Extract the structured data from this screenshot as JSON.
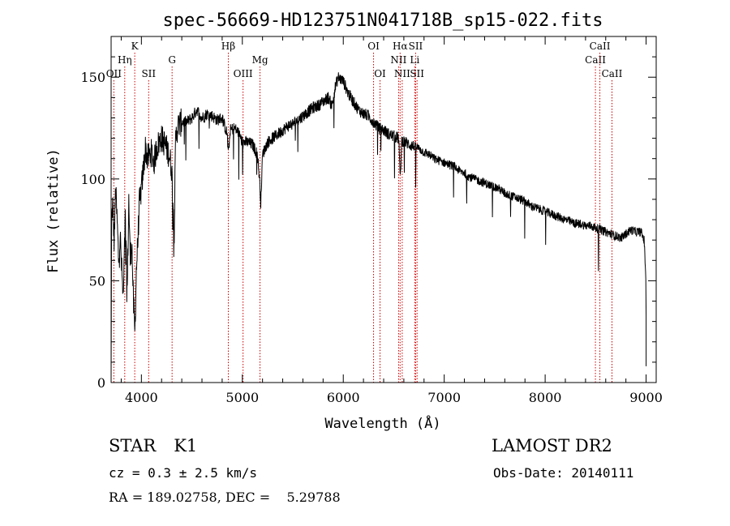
{
  "chart_data": {
    "type": "line",
    "title": "spec-56669-HD123751N041718B_sp15-022.fits",
    "xlabel": "Wavelength (Å)",
    "ylabel": "Flux (relative)",
    "xlim": [
      3700,
      9100
    ],
    "ylim": [
      0,
      170
    ],
    "x_ticks": [
      4000,
      5000,
      6000,
      7000,
      8000,
      9000
    ],
    "y_ticks": [
      0,
      50,
      100,
      150
    ],
    "grid": false,
    "line_color": "#000000",
    "marker_color": "#cc0000",
    "spectrum_anchors": [
      [
        3700,
        73
      ],
      [
        3715,
        88
      ],
      [
        3730,
        70
      ],
      [
        3745,
        95
      ],
      [
        3760,
        78
      ],
      [
        3775,
        60
      ],
      [
        3790,
        72
      ],
      [
        3805,
        55
      ],
      [
        3820,
        40
      ],
      [
        3840,
        80
      ],
      [
        3860,
        45
      ],
      [
        3875,
        90
      ],
      [
        3890,
        60
      ],
      [
        3905,
        70
      ],
      [
        3920,
        40
      ],
      [
        3935,
        25
      ],
      [
        3950,
        55
      ],
      [
        3965,
        70
      ],
      [
        3980,
        88
      ],
      [
        4000,
        95
      ],
      [
        4020,
        105
      ],
      [
        4040,
        115
      ],
      [
        4060,
        110
      ],
      [
        4080,
        112
      ],
      [
        4100,
        113
      ],
      [
        4125,
        108
      ],
      [
        4150,
        115
      ],
      [
        4175,
        118
      ],
      [
        4200,
        120
      ],
      [
        4225,
        118
      ],
      [
        4250,
        115
      ],
      [
        4275,
        112
      ],
      [
        4300,
        105
      ],
      [
        4325,
        75
      ],
      [
        4340,
        120
      ],
      [
        4360,
        126
      ],
      [
        4400,
        128
      ],
      [
        4450,
        128
      ],
      [
        4500,
        130
      ],
      [
        4550,
        134
      ],
      [
        4600,
        130
      ],
      [
        4650,
        132
      ],
      [
        4700,
        131
      ],
      [
        4750,
        129
      ],
      [
        4800,
        130
      ],
      [
        4850,
        122
      ],
      [
        4861,
        112
      ],
      [
        4880,
        124
      ],
      [
        4920,
        125
      ],
      [
        4960,
        123
      ],
      [
        5000,
        118
      ],
      [
        5050,
        118
      ],
      [
        5100,
        117
      ],
      [
        5150,
        112
      ],
      [
        5170,
        100
      ],
      [
        5183,
        88
      ],
      [
        5200,
        112
      ],
      [
        5250,
        118
      ],
      [
        5300,
        120
      ],
      [
        5350,
        122
      ],
      [
        5400,
        124
      ],
      [
        5450,
        126
      ],
      [
        5500,
        127
      ],
      [
        5550,
        129
      ],
      [
        5600,
        131
      ],
      [
        5650,
        133
      ],
      [
        5700,
        135
      ],
      [
        5750,
        136
      ],
      [
        5800,
        138
      ],
      [
        5850,
        140
      ],
      [
        5890,
        136
      ],
      [
        5920,
        145
      ],
      [
        5950,
        150
      ],
      [
        6000,
        148
      ],
      [
        6050,
        142
      ],
      [
        6100,
        138
      ],
      [
        6150,
        134
      ],
      [
        6200,
        132
      ],
      [
        6250,
        131
      ],
      [
        6300,
        128
      ],
      [
        6350,
        125
      ],
      [
        6400,
        124
      ],
      [
        6450,
        122
      ],
      [
        6500,
        121
      ],
      [
        6550,
        120
      ],
      [
        6563,
        100
      ],
      [
        6580,
        119
      ],
      [
        6620,
        118
      ],
      [
        6650,
        117
      ],
      [
        6700,
        116
      ],
      [
        6750,
        115
      ],
      [
        6800,
        113
      ],
      [
        6850,
        112
      ],
      [
        6900,
        110
      ],
      [
        6950,
        109
      ],
      [
        7000,
        108
      ],
      [
        7050,
        107
      ],
      [
        7100,
        106
      ],
      [
        7150,
        104
      ],
      [
        7200,
        103
      ],
      [
        7250,
        101
      ],
      [
        7300,
        100
      ],
      [
        7350,
        99
      ],
      [
        7400,
        98
      ],
      [
        7450,
        97
      ],
      [
        7500,
        96
      ],
      [
        7550,
        95
      ],
      [
        7600,
        93
      ],
      [
        7650,
        92
      ],
      [
        7700,
        91
      ],
      [
        7750,
        90
      ],
      [
        7800,
        89
      ],
      [
        7850,
        87
      ],
      [
        7900,
        86
      ],
      [
        7950,
        85
      ],
      [
        8000,
        84
      ],
      [
        8050,
        83
      ],
      [
        8100,
        82
      ],
      [
        8150,
        81
      ],
      [
        8200,
        80
      ],
      [
        8250,
        79
      ],
      [
        8300,
        78
      ],
      [
        8350,
        78
      ],
      [
        8400,
        77
      ],
      [
        8450,
        77
      ],
      [
        8500,
        76
      ],
      [
        8550,
        75
      ],
      [
        8600,
        74
      ],
      [
        8650,
        73
      ],
      [
        8700,
        72
      ],
      [
        8750,
        71
      ],
      [
        8800,
        73
      ],
      [
        8850,
        75
      ],
      [
        8900,
        74
      ],
      [
        8950,
        74
      ],
      [
        8980,
        70
      ],
      [
        9000,
        50
      ]
    ],
    "line_markers": [
      {
        "name": "OII",
        "wavelength": 3727,
        "row": 3
      },
      {
        "name": "Hη",
        "wavelength": 3835,
        "row": 2
      },
      {
        "name": "K",
        "wavelength": 3934,
        "row": 1
      },
      {
        "name": "SII",
        "wavelength": 4072,
        "row": 3
      },
      {
        "name": "G",
        "wavelength": 4304,
        "row": 2
      },
      {
        "name": "Hβ",
        "wavelength": 4861,
        "row": 1
      },
      {
        "name": "OIII",
        "wavelength": 5007,
        "row": 3
      },
      {
        "name": "Mg",
        "wavelength": 5175,
        "row": 2
      },
      {
        "name": "OI",
        "wavelength": 6300,
        "row": 1
      },
      {
        "name": "OI",
        "wavelength": 6364,
        "row": 3
      },
      {
        "name": "NII",
        "wavelength": 6548,
        "row": 2
      },
      {
        "name": "Hα",
        "wavelength": 6563,
        "row": 1
      },
      {
        "name": "NII",
        "wavelength": 6584,
        "row": 3
      },
      {
        "name": "Li",
        "wavelength": 6708,
        "row": 2
      },
      {
        "name": "SII",
        "wavelength": 6717,
        "row": 1
      },
      {
        "name": "SII",
        "wavelength": 6731,
        "row": 3
      },
      {
        "name": "CaII",
        "wavelength": 8498,
        "row": 2
      },
      {
        "name": "CaII",
        "wavelength": 8542,
        "row": 1
      },
      {
        "name": "CaII",
        "wavelength": 8662,
        "row": 3
      }
    ]
  },
  "footer": {
    "object_class": "STAR",
    "subclass": "K1",
    "redshift": "cz = 0.3 ± 2.5 km/s",
    "survey": "LAMOST DR2",
    "obs_date": "Obs-Date: 20140111",
    "coordinates": "RA = 189.02758, DEC =    5.29788"
  }
}
